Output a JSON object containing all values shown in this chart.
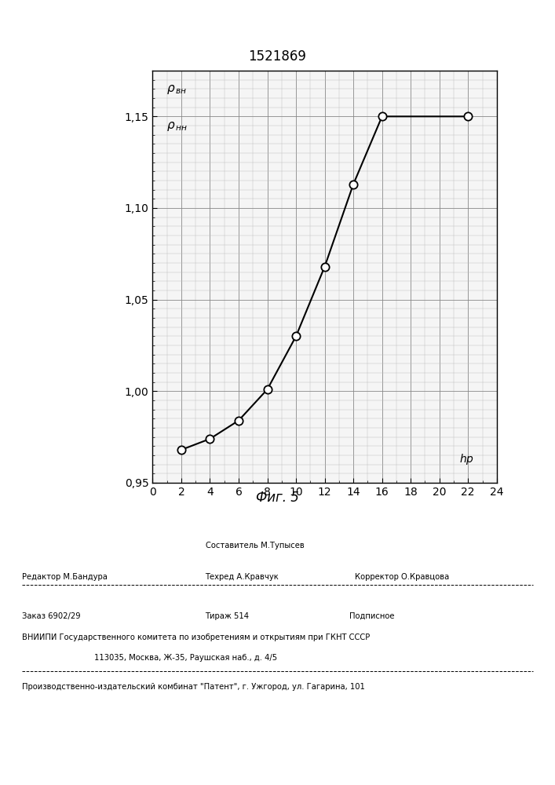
{
  "title": "1521869",
  "xlim": [
    0,
    24
  ],
  "ylim": [
    0.95,
    1.175
  ],
  "xticks": [
    0,
    2,
    4,
    6,
    8,
    10,
    12,
    14,
    16,
    18,
    20,
    22,
    24
  ],
  "yticks": [
    0.95,
    1.0,
    1.05,
    1.1,
    1.15
  ],
  "ytick_labels": [
    "0,95",
    "1,00",
    "1,05",
    "1,10",
    "1,15"
  ],
  "x_data": [
    2,
    4,
    6,
    8,
    10,
    12,
    14,
    16,
    22
  ],
  "y_data": [
    0.968,
    0.974,
    0.984,
    1.001,
    1.03,
    1.068,
    1.113,
    1.15,
    1.15
  ],
  "line_color": "#000000",
  "marker_color": "#000000",
  "background_color": "#f5f5f5",
  "grid_major_color": "#888888",
  "grid_minor_color": "#bbbbbb",
  "title_fontsize": 12,
  "tick_fontsize": 10,
  "caption_fontsize": 12,
  "ylabel_line1": "ρвн",
  "ylabel_line2": "ρнн",
  "xlabel": "hp",
  "caption": "Фиг. 5"
}
